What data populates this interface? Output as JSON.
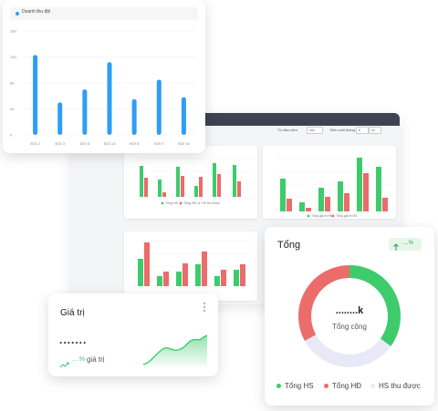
{
  "revenue_card": {
    "legend": "Doanh thu đội",
    "y_ticks": [
      "160",
      "120",
      "80",
      "40",
      "0"
    ]
  },
  "dashboard": {
    "filter_from_label": "Từ đầu năm",
    "filter_from_value": "mm",
    "filter_to_label": "Đến cuối tháng",
    "filter_to_value_a": "tt",
    "filter_to_value_b": "nn",
    "panel1_legend": [
      "Tổng HS",
      "Tổng HĐ",
      "HS thu được"
    ],
    "panel2_legend": [
      "Tổng giá trị HĐ",
      "Tổng giá trị HS"
    ]
  },
  "value_card": {
    "title": "Giá trị",
    "menu_icon": "more-vertical-icon",
    "value": ".......",
    "trend_percent": "....%",
    "trend_label": "giá trị",
    "trend_icon": "trend-up-icon"
  },
  "total_card": {
    "title": "Tổng",
    "badge_percent": "....%",
    "badge_icon": "arrow-up-icon",
    "center_value": "........k",
    "center_label": "Tổng cộng",
    "legend": [
      {
        "label": "Tổng HS",
        "color": "#3ecb6c"
      },
      {
        "label": "Tổng HĐ",
        "color": "#ec6b6b"
      },
      {
        "label": "HS thu được",
        "color": "#e9e8f7"
      }
    ]
  },
  "chart_data": [
    {
      "type": "bar",
      "categories": [
        "ĐỘI 2",
        "ĐỘI 3",
        "ĐỘI 5",
        "ĐỘI 15",
        "ĐỘI 8",
        "ĐỘI 9",
        "ĐỘI 10"
      ],
      "series": [
        {
          "name": "Doanh thu đội",
          "values": [
            123,
            50,
            70,
            112,
            55,
            85,
            58
          ]
        }
      ],
      "ylim": [
        0,
        160
      ],
      "colors": [
        "#2e9ef4"
      ]
    },
    {
      "type": "pie",
      "labels": [
        "Tổng HS",
        "Tổng HĐ",
        "HS thu được"
      ],
      "values": [
        35,
        33,
        32
      ],
      "colors": [
        "#3ecb6c",
        "#ec6b6b",
        "#e9e8f7"
      ]
    }
  ]
}
